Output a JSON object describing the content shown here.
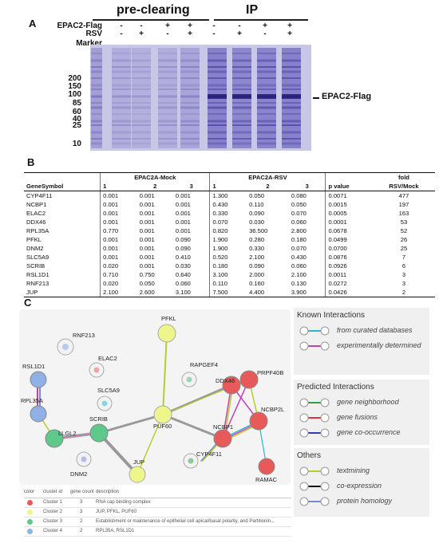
{
  "panel_a": {
    "letter": "A",
    "header_preclearing": "pre-clearing",
    "header_ip": "IP",
    "row_epac2": "EPAC2-Flag",
    "row_rsv": "RSV",
    "row_marker": "Marker",
    "epac2_symbols": [
      "-",
      "-",
      "+",
      "+",
      "-",
      "-",
      "+",
      "+"
    ],
    "rsv_symbols": [
      "-",
      "+",
      "-",
      "+",
      "-",
      "+",
      "-",
      "+"
    ],
    "mw_labels": [
      "200",
      "150",
      "100",
      "85",
      "60",
      "40",
      "25",
      "10"
    ],
    "band_label": "EPAC2-Flag"
  },
  "panel_b": {
    "letter": "B",
    "group_mock": "EPAC2A-Mock",
    "group_rsv": "EPAC2A-RSV",
    "fold_top": "fold",
    "columns": [
      "GeneSymbol",
      "1",
      "2",
      "3",
      "1",
      "2",
      "3",
      "p value",
      "RSV/Mock"
    ],
    "rows": [
      [
        "CYP4F11",
        "0.001",
        "0.001",
        "0.001",
        "1.300",
        "0.050",
        "0.080",
        "0.0071",
        "477"
      ],
      [
        "NCBP1",
        "0.001",
        "0.001",
        "0.001",
        "0.430",
        "0.110",
        "0.050",
        "0.0015",
        "197"
      ],
      [
        "ELAC2",
        "0.001",
        "0.001",
        "0.001",
        "0.330",
        "0.090",
        "0.070",
        "0.0005",
        "163"
      ],
      [
        "DDX46",
        "0.001",
        "0.001",
        "0.001",
        "0.070",
        "0.030",
        "0.060",
        "0.0001",
        "53"
      ],
      [
        "RPL35A",
        "0.770",
        "0.001",
        "0.001",
        "0.820",
        "36.500",
        "2.800",
        "0.0678",
        "52"
      ],
      [
        "PFKL",
        "0.001",
        "0.001",
        "0.090",
        "1.900",
        "0.280",
        "0.180",
        "0.0499",
        "26"
      ],
      [
        "DNM2",
        "0.001",
        "0.001",
        "0.090",
        "1.900",
        "0.330",
        "0.070",
        "0.0700",
        "25"
      ],
      [
        "SLC5A9",
        "0.001",
        "0.001",
        "0.410",
        "0.520",
        "2.100",
        "0.430",
        "0.0876",
        "7"
      ],
      [
        "SCRIB",
        "0.020",
        "0.001",
        "0.030",
        "0.180",
        "0.090",
        "0.060",
        "0.0926",
        "6"
      ],
      [
        "RSL1D1",
        "0.710",
        "0.750",
        "0.640",
        "3.100",
        "2.000",
        "2.100",
        "0.0011",
        "3"
      ],
      [
        "RNF213",
        "0.020",
        "0.050",
        "0.060",
        "0.110",
        "0.160",
        "0.130",
        "0.0272",
        "3"
      ],
      [
        "JUP",
        "2.100",
        "2.600",
        "3.100",
        "7.500",
        "4.400",
        "3.900",
        "0.0426",
        "2"
      ]
    ]
  },
  "panel_c": {
    "letter": "C",
    "nodes": [
      "RNF213",
      "PFKL",
      "RAPGEF4",
      "ELAC2",
      "RSL1D1",
      "RPL35A",
      "SLC5A9",
      "PUF60",
      "DDX46",
      "PRPF40B",
      "NCBP2L",
      "NCBP1",
      "LLGL2",
      "SCRIB",
      "DNM2",
      "JUP",
      "CYP4F11",
      "RAMAC"
    ],
    "node_colors": {
      "red": "#e85a5a",
      "yellow": "#eef58a",
      "green": "#5dc98a",
      "blue": "#8fb1e8",
      "white": "#f3f3f3"
    },
    "legend": {
      "known_title": "Known Interactions",
      "known": [
        {
          "label": "from curated databases",
          "color": "#2bb7c8"
        },
        {
          "label": "experimentally determined",
          "color": "#c53fb3"
        }
      ],
      "predicted_title": "Predicted Interactions",
      "predicted": [
        {
          "label": "gene neighborhood",
          "color": "#2e9e4a"
        },
        {
          "label": "gene fusions",
          "color": "#d93535"
        },
        {
          "label": "gene co-occurrence",
          "color": "#2740b8"
        }
      ],
      "others_title": "Others",
      "others": [
        {
          "label": "textmining",
          "color": "#b8cc2a"
        },
        {
          "label": "co-expression",
          "color": "#111111"
        },
        {
          "label": "protein homology",
          "color": "#7a86d6"
        }
      ]
    },
    "cluster_table": {
      "headers": [
        "color",
        "cluster id",
        "gene count",
        "description"
      ],
      "rows": [
        {
          "color": "#e85a5a",
          "id": "Cluster 1",
          "count": "3",
          "desc": "RNA cap binding complex"
        },
        {
          "color": "#eef58a",
          "id": "Cluster 2",
          "count": "3",
          "desc": "JUP, PFKL, PUF60"
        },
        {
          "color": "#5dc98a",
          "id": "Cluster 3",
          "count": "2",
          "desc": "Establishment or maintenance of epithelial cell apical/basal polarity, and Partitionin..."
        },
        {
          "color": "#8fb1e8",
          "id": "Cluster 4",
          "count": "2",
          "desc": "RPL35A, RSL1D1"
        }
      ]
    }
  }
}
